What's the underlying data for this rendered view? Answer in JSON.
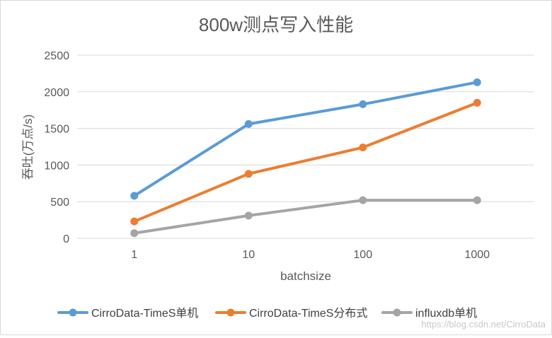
{
  "chart_data": {
    "type": "line",
    "title": "800w测点写入性能",
    "xlabel": "batchsize",
    "ylabel": "吞吐(万点/s)",
    "categories": [
      "1",
      "10",
      "100",
      "1000"
    ],
    "ylim": [
      0,
      2500
    ],
    "yticks": [
      0,
      500,
      1000,
      1500,
      2000,
      2500
    ],
    "grid": true,
    "legend_position": "bottom",
    "series": [
      {
        "name": "CirroData-TimeS单机",
        "color": "#5B9BD5",
        "values": [
          580,
          1560,
          1830,
          2130
        ]
      },
      {
        "name": "CirroData-TimeS分布式",
        "color": "#ED7D31",
        "values": [
          230,
          880,
          1240,
          1850
        ]
      },
      {
        "name": "influxdb单机",
        "color": "#A5A5A5",
        "values": [
          70,
          310,
          520,
          520
        ]
      }
    ]
  },
  "watermark": "https://blog.csdn.net/CirroData"
}
